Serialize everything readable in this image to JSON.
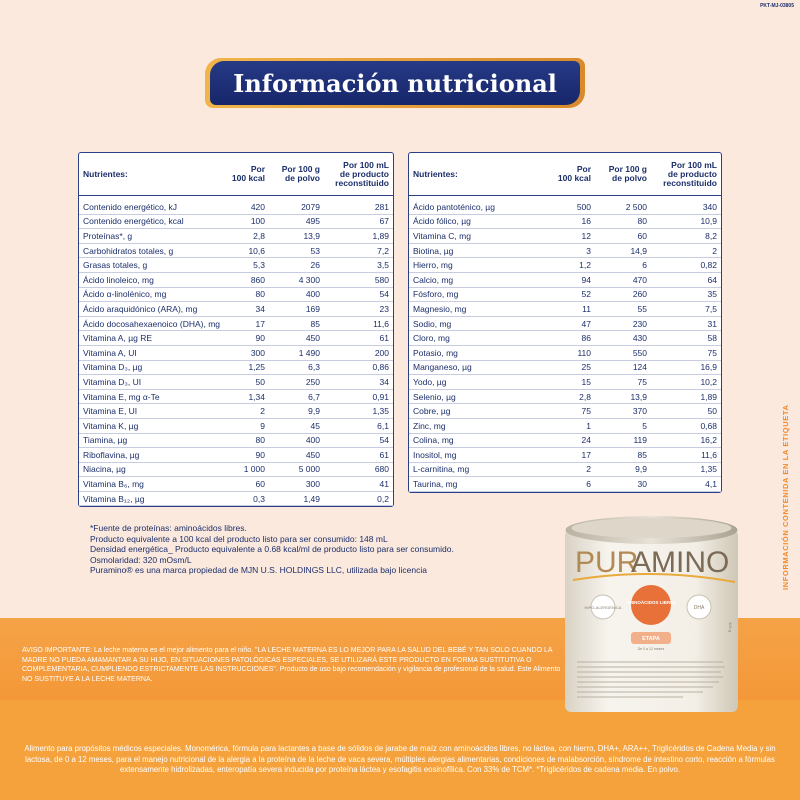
{
  "code": "PKT-MJ-03805",
  "title": "Información nutricional",
  "table_left": {
    "headers": [
      "Nutrientes:",
      "Por\n100 kcal",
      "Por 100 g\nde polvo",
      "Por 100 mL\nde producto\nreconstituido"
    ],
    "rows": [
      [
        "Contenido energético, kJ",
        "420",
        "2079",
        "281"
      ],
      [
        "Contenido energético, kcal",
        "100",
        "495",
        "67"
      ],
      [
        "Proteínas*, g",
        "2,8",
        "13,9",
        "1,89"
      ],
      [
        "Carbohidratos totales, g",
        "10,6",
        "53",
        "7,2"
      ],
      [
        "Grasas totales, g",
        "5,3",
        "26",
        "3,5"
      ],
      [
        "Ácido linoleico, mg",
        "860",
        "4 300",
        "580"
      ],
      [
        "Ácido α-linolénico, mg",
        "80",
        "400",
        "54"
      ],
      [
        "Ácido araquidónico (ARA), mg",
        "34",
        "169",
        "23"
      ],
      [
        "Ácido docosahexaenoico (DHA), mg",
        "17",
        "85",
        "11,6"
      ],
      [
        "Vitamina A, µg RE",
        "90",
        "450",
        "61"
      ],
      [
        "Vitamina A, UI",
        "300",
        "1 490",
        "200"
      ],
      [
        "Vitamina D₃, µg",
        "1,25",
        "6,3",
        "0,86"
      ],
      [
        "Vitamina D₃, UI",
        "50",
        "250",
        "34"
      ],
      [
        "Vitamina E, mg α-Te",
        "1,34",
        "6,7",
        "0,91"
      ],
      [
        "Vitamina E, UI",
        "2",
        "9,9",
        "1,35"
      ],
      [
        "Vitamina K, µg",
        "9",
        "45",
        "6,1"
      ],
      [
        "Tiamina, µg",
        "80",
        "400",
        "54"
      ],
      [
        "Riboflavina, µg",
        "90",
        "450",
        "61"
      ],
      [
        "Niacina, µg",
        "1 000",
        "5 000",
        "680"
      ],
      [
        "Vitamina B₆, mg",
        "60",
        "300",
        "41"
      ],
      [
        "Vitamina B₁₂, µg",
        "0,3",
        "1,49",
        "0,2"
      ]
    ]
  },
  "table_right": {
    "headers": [
      "Nutrientes:",
      "Por\n100 kcal",
      "Por 100 g\nde polvo",
      "Por 100 mL\nde producto\nreconstituido"
    ],
    "rows": [
      [
        "Ácido pantoténico, µg",
        "500",
        "2 500",
        "340"
      ],
      [
        "Ácido fólico, µg",
        "16",
        "80",
        "10,9"
      ],
      [
        "Vitamina C, mg",
        "12",
        "60",
        "8,2"
      ],
      [
        "Biotina, µg",
        "3",
        "14,9",
        "2"
      ],
      [
        "Hierro, mg",
        "1,2",
        "6",
        "0,82"
      ],
      [
        "Calcio, mg",
        "94",
        "470",
        "64"
      ],
      [
        "Fósforo, mg",
        "52",
        "260",
        "35"
      ],
      [
        "Magnesio, mg",
        "11",
        "55",
        "7,5"
      ],
      [
        "Sodio, mg",
        "47",
        "230",
        "31"
      ],
      [
        "Cloro, mg",
        "86",
        "430",
        "58"
      ],
      [
        "Potasio, mg",
        "110",
        "550",
        "75"
      ],
      [
        "Manganeso, µg",
        "25",
        "124",
        "16,9"
      ],
      [
        "Yodo, µg",
        "15",
        "75",
        "10,2"
      ],
      [
        "Selenio, µg",
        "2,8",
        "13,9",
        "1,89"
      ],
      [
        "Cobre, µg",
        "75",
        "370",
        "50"
      ],
      [
        "Zinc, mg",
        "1",
        "5",
        "0,68"
      ],
      [
        "Colina, mg",
        "24",
        "119",
        "16,2"
      ],
      [
        "Inositol, mg",
        "17",
        "85",
        "11,6"
      ],
      [
        "L-carnitina, mg",
        "2",
        "9,9",
        "1,35"
      ],
      [
        "Taurina, mg",
        "6",
        "30",
        "4,1"
      ]
    ]
  },
  "footnotes": [
    "*Fuente de proteínas: aminoácidos libres.",
    "Producto equivalente a 100 kcal del producto listo para ser consumido: 148 mL",
    "Densidad energética_ Producto equivalente a 0.68 kcal/ml de producto listo para ser consumido.",
    "Osmolaridad: 320 mOsm/L",
    "Puramino® es una marca propiedad de MJN U.S. HOLDINGS LLC, utilizada bajo licencia"
  ],
  "side_text": "INFORMACIÓN CONTENIDA EN LA ETIQUETA",
  "warning": "AVISO IMPORTANTE: La leche materna es el mejor alimento para el niño. \"LA LECHE MATERNA ES LO MEJOR PARA LA SALUD DEL BEBÉ Y TAN SOLO CUANDO LA MADRE NO PUEDA AMAMANTAR A SU HIJO, EN SITUACIONES PATOLÓGICAS ESPECIALES, SE UTILIZARÁ ESTE PRODUCTO EN FORMA SUSTITUTIVA O COMPLEMENTARIA, CUMPLIENDO ESTRICTAMENTE LAS INSTRUCCIONES\". Producto de uso bajo recomendación y vigilancia de profesional de la salud. Este Alimento NO SUSTITUYE A LA LECHE MATERNA.",
  "bottom_text": "Alimento para propósitos médicos especiales. Monomérica, fórmula para lactantes a base de sólidos de jarabe de maíz con aminoácidos libres, no láctea, con hierro, DHA+, ARA++, Triglicéridos de Cadena Media y sin lactosa, de 0 a 12 meses, para el manejo nutricional de la alergia a la proteína de la leche de vaca severa, múltiples alergias alimentarias, condiciones de malabsorción, síndrome de intestino corto, reacción a fórmulas extensamente hidrolizadas, enteropatía severa inducida por proteína láctea y esofagitis eosinofílica. Con 33% de TCM*. *Triglicéridos de cadena media. En polvo.",
  "can": {
    "brand_pur": "PUR",
    "brand_amino": "AMINO",
    "badge_left": "HIPO-ALERGÉNICA",
    "badge_center": "AMINOÁCIDOS LIBRES",
    "badge_right": "DHA",
    "stage": "ETAPA",
    "stage_sub": "De 0 a 12 meses",
    "weight": "400 g",
    "colors": {
      "lid": "#cfc8b8",
      "body": "#f4f0e8",
      "accent": "#e8713a"
    }
  }
}
